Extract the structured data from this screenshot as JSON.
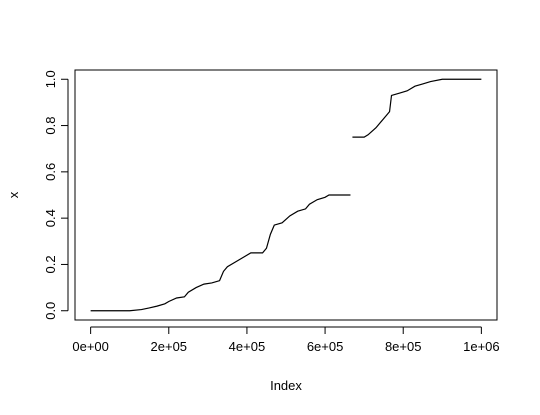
{
  "chart_data": {
    "type": "line",
    "xlabel": "Index",
    "ylabel": "x",
    "color": "#000000",
    "x": [
      0,
      100000,
      130000,
      150000,
      170000,
      190000,
      200000,
      220000,
      240000,
      250000,
      270000,
      290000,
      310000,
      330000,
      340000,
      350000,
      370000,
      390000,
      410000,
      440000,
      450000,
      460000,
      470000,
      490000,
      510000,
      530000,
      550000,
      560000,
      580000,
      600000,
      610000,
      665000,
      667500,
      670000,
      700000,
      710000,
      730000,
      750000,
      760000,
      765000,
      770000,
      790000,
      810000,
      830000,
      850000,
      870000,
      900000,
      1000000
    ],
    "values": [
      0,
      0,
      0.005,
      0.012,
      0.02,
      0.03,
      0.04,
      0.055,
      0.06,
      0.08,
      0.1,
      0.115,
      0.12,
      0.13,
      0.17,
      0.19,
      0.21,
      0.23,
      0.25,
      0.25,
      0.27,
      0.33,
      0.37,
      0.38,
      0.41,
      0.43,
      0.44,
      0.46,
      0.48,
      0.49,
      0.5,
      0.5,
      null,
      0.75,
      0.75,
      0.76,
      0.79,
      0.83,
      0.85,
      0.86,
      0.93,
      0.94,
      0.95,
      0.97,
      0.98,
      0.99,
      1,
      1
    ],
    "xlim": [
      -40000,
      1040000
    ],
    "ylim": [
      -0.04,
      1.04
    ],
    "xticks": [
      {
        "value": 0,
        "label": "0e+00"
      },
      {
        "value": 200000,
        "label": "2e+05"
      },
      {
        "value": 400000,
        "label": "4e+05"
      },
      {
        "value": 600000,
        "label": "6e+05"
      },
      {
        "value": 800000,
        "label": "8e+05"
      },
      {
        "value": 1000000,
        "label": "1e+06"
      }
    ],
    "yticks": [
      {
        "value": 0,
        "label": "0.0"
      },
      {
        "value": 0.2,
        "label": "0.2"
      },
      {
        "value": 0.4,
        "label": "0.4"
      },
      {
        "value": 0.6,
        "label": "0.6"
      },
      {
        "value": 0.8,
        "label": "0.8"
      },
      {
        "value": 1,
        "label": "1.0"
      }
    ]
  }
}
